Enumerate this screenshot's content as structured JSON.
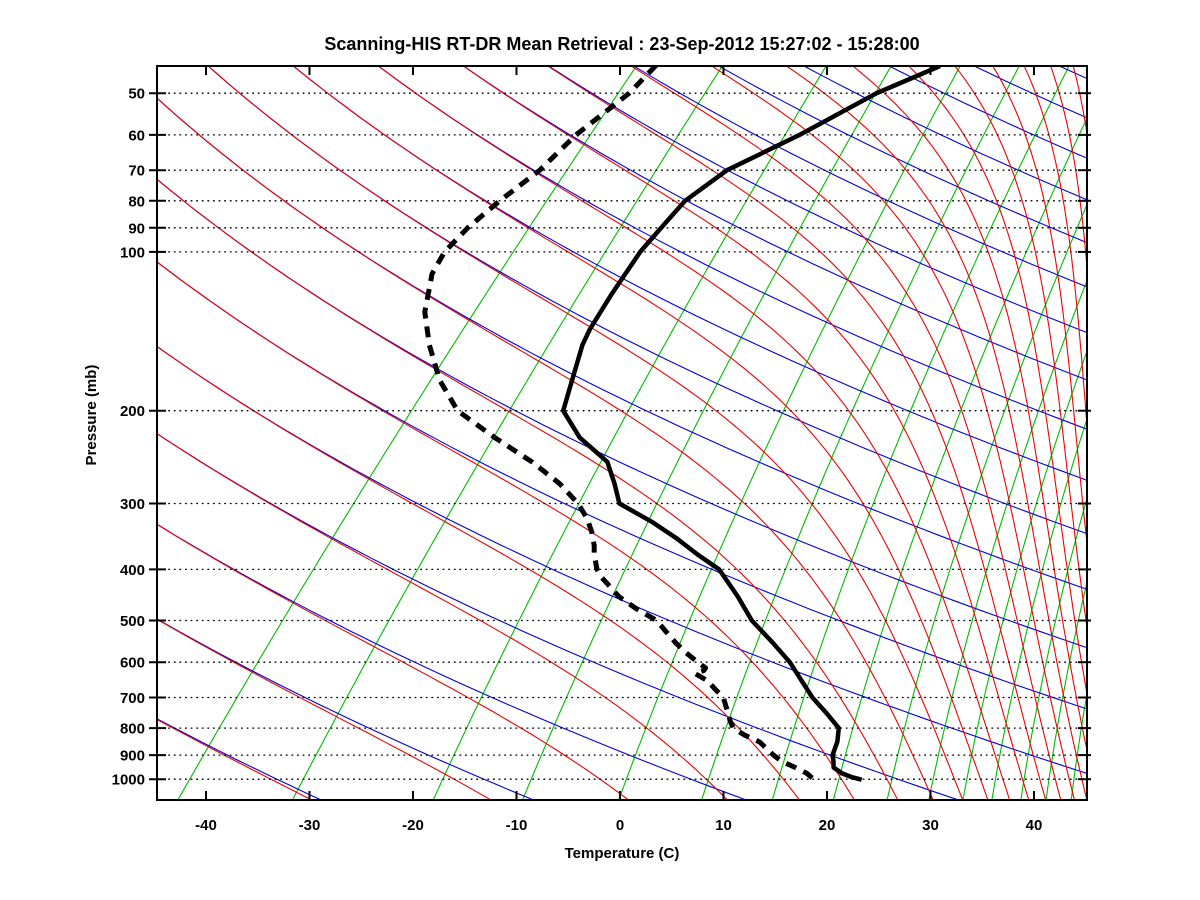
{
  "title": "Scanning-HIS RT-DR Mean Retrieval : 23-Sep-2012 15:27:02 - 15:28:00",
  "axes": {
    "x": {
      "label": "Temperature (C)",
      "min": -44.7,
      "max": 45.2,
      "ticks": [
        -40,
        -30,
        -20,
        -10,
        0,
        10,
        20,
        30,
        40
      ]
    },
    "y": {
      "label": "Pressure (mb)",
      "top_mb": 44.4,
      "bottom_mb": 1095,
      "ticks": [
        50,
        60,
        70,
        80,
        90,
        100,
        200,
        300,
        400,
        500,
        600,
        700,
        800,
        900,
        1000
      ]
    }
  },
  "skew": {
    "degC_per_decade": 50.95
  },
  "background_lines": {
    "dry_adiabats": {
      "color": "#0000dd",
      "theta_K_start": 220,
      "theta_K_end": 620,
      "theta_K_step": 20
    },
    "moist_adiabats": {
      "color": "#ee0000",
      "thetae_K_start": 220,
      "thetae_K_end": 680,
      "thetae_K_step": 20
    },
    "mixing_ratio": {
      "color": "#00bb00",
      "w_gkg": [
        0.1,
        0.3,
        1,
        2,
        4,
        7,
        11,
        16,
        22,
        28,
        34,
        40,
        47,
        54,
        62
      ]
    },
    "pressure_grid": {
      "color": "#000000",
      "style": "dotted"
    }
  },
  "chart_data": {
    "type": "line",
    "title": "Scanning-HIS RT-DR Mean Retrieval : 23-Sep-2012 15:27:02 - 15:28:00",
    "xlabel": "Temperature (C)",
    "ylabel": "Pressure (mb)",
    "x_range_C": [
      -44.7,
      45.2
    ],
    "p_range_mb": [
      44.4,
      1095
    ],
    "y_scale": "log",
    "grid": "dotted horizontal pressure lines at labeled ticks",
    "legend": "none",
    "series": [
      {
        "name": "temperature",
        "style": "solid",
        "color": "#000000",
        "width": 4.5,
        "points_p_T": [
          [
            44.4,
            -38.0
          ],
          [
            50,
            -41.5
          ],
          [
            60,
            -44.9
          ],
          [
            70,
            -48.5
          ],
          [
            80,
            -49.6
          ],
          [
            90,
            -49.3
          ],
          [
            100,
            -49.0
          ],
          [
            120,
            -47.7
          ],
          [
            140,
            -46.4
          ],
          [
            150,
            -45.6
          ],
          [
            175,
            -43.2
          ],
          [
            200,
            -41.1
          ],
          [
            225,
            -36.9
          ],
          [
            250,
            -31.9
          ],
          [
            275,
            -29.1
          ],
          [
            300,
            -26.7
          ],
          [
            325,
            -21.8
          ],
          [
            350,
            -17.7
          ],
          [
            375,
            -14.2
          ],
          [
            400,
            -10.7
          ],
          [
            450,
            -6.3
          ],
          [
            500,
            -2.6
          ],
          [
            550,
            1.5
          ],
          [
            600,
            5.1
          ],
          [
            650,
            8.0
          ],
          [
            700,
            10.7
          ],
          [
            750,
            13.6
          ],
          [
            800,
            16.2
          ],
          [
            850,
            17.4
          ],
          [
            900,
            18.2
          ],
          [
            925,
            18.9
          ],
          [
            950,
            19.5
          ],
          [
            975,
            20.9
          ],
          [
            990,
            22.1
          ],
          [
            1002,
            23.4
          ]
        ]
      },
      {
        "name": "dewpoint",
        "style": "dashed",
        "color": "#000000",
        "width": 5,
        "points_p_T": [
          [
            44.3,
            -65.5
          ],
          [
            50,
            -65.4
          ],
          [
            60,
            -66.5
          ],
          [
            70,
            -66.6
          ],
          [
            80,
            -67.5
          ],
          [
            90,
            -68.0
          ],
          [
            100,
            -67.9
          ],
          [
            110,
            -67.0
          ],
          [
            130,
            -64.0
          ],
          [
            150,
            -60.4
          ],
          [
            175,
            -56.0
          ],
          [
            200,
            -51.3
          ],
          [
            225,
            -45.1
          ],
          [
            250,
            -39.2
          ],
          [
            275,
            -34.4
          ],
          [
            300,
            -30.7
          ],
          [
            320,
            -28.4
          ],
          [
            340,
            -26.6
          ],
          [
            360,
            -25.1
          ],
          [
            375,
            -24.2
          ],
          [
            400,
            -22.5
          ],
          [
            415,
            -21.2
          ],
          [
            435,
            -19.2
          ],
          [
            450,
            -17.8
          ],
          [
            475,
            -14.9
          ],
          [
            500,
            -11.8
          ],
          [
            525,
            -9.8
          ],
          [
            550,
            -7.9
          ],
          [
            575,
            -5.9
          ],
          [
            600,
            -3.8
          ],
          [
            615,
            -2.5
          ],
          [
            622,
            -2.4
          ],
          [
            630,
            -3.0
          ],
          [
            650,
            -1.1
          ],
          [
            675,
            0.5
          ],
          [
            700,
            2.1
          ],
          [
            725,
            3.1
          ],
          [
            750,
            4.1
          ],
          [
            775,
            5.0
          ],
          [
            800,
            6.0
          ],
          [
            825,
            7.8
          ],
          [
            850,
            9.9
          ],
          [
            875,
            11.2
          ],
          [
            900,
            12.5
          ],
          [
            925,
            13.9
          ],
          [
            950,
            15.8
          ],
          [
            975,
            17.5
          ],
          [
            1000,
            18.7
          ]
        ]
      }
    ]
  }
}
